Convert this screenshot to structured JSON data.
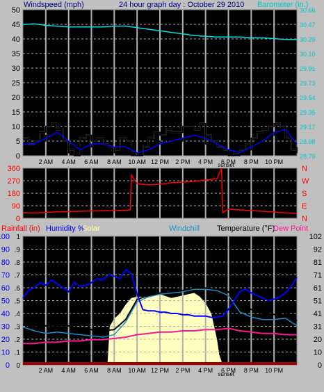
{
  "header": {
    "left_label": "Windspeed (mph)",
    "title": "24 hour graph day : October 29 2010",
    "right_label": "Barometer (in.)"
  },
  "bottom_header": {
    "rainfall": "Rainfall (in)",
    "humidity": "Humidity %",
    "solar": "Solar",
    "windchill": "Windchill",
    "temperature": "Temperature (°F)",
    "dewpoint": "Dew Point"
  },
  "colors": {
    "background": "#c0c0c0",
    "plot": "#000000",
    "barometer": "#00e0e0",
    "wind_direction": "#ff0000",
    "humidity": "#0000ff",
    "solar": "#ffffc0",
    "windchill": "#1890c8",
    "temperature": "#000000",
    "dewpoint": "#ff1493",
    "rain": "#ff0000"
  },
  "time_ticks": [
    "2 AM",
    "4 AM",
    "6 AM",
    "8 AM",
    "10 AM",
    "12 PM",
    "2 PM",
    "4 PM",
    "6 PM",
    "8 PM",
    "10 PM"
  ],
  "sunset_label": "sunset",
  "chart_data": [
    {
      "type": "line",
      "title": "Windspeed / Barometer",
      "x_unit": "hour of day",
      "xlim": [
        0,
        24
      ],
      "left_axis": {
        "label": "Windspeed (mph)",
        "ylim": [
          0,
          50
        ],
        "ticks": [
          "0",
          "5",
          "10",
          "15",
          "20",
          "25",
          "30",
          "35",
          "40",
          "45",
          "50"
        ]
      },
      "right_axis": {
        "label": "Barometer (in.)",
        "ylim": [
          28.79,
          30.66
        ],
        "ticks": [
          "28.79",
          "28.98",
          "29.17",
          "29.35",
          "29.54",
          "29.73",
          "29.91",
          "30.10",
          "30.29",
          "30.47",
          "30.66"
        ]
      },
      "series": [
        {
          "name": "Barometer (in.)",
          "axis": "right",
          "x": [
            0,
            1,
            2,
            3,
            4,
            5,
            6,
            7,
            8,
            9,
            10,
            11,
            12,
            13,
            14,
            15,
            16,
            17,
            18,
            19,
            20,
            21,
            22,
            23,
            24
          ],
          "values": [
            30.47,
            30.48,
            30.46,
            30.45,
            30.44,
            30.44,
            30.44,
            30.44,
            30.45,
            30.45,
            30.43,
            30.41,
            30.39,
            30.37,
            30.35,
            30.33,
            30.32,
            30.31,
            30.31,
            30.31,
            30.3,
            30.3,
            30.29,
            30.28,
            30.28
          ]
        },
        {
          "name": "Wind gust",
          "axis": "left",
          "x": [
            0,
            0.5,
            1,
            1.5,
            2,
            2.5,
            3,
            3.5,
            4,
            4.5,
            5,
            5.5,
            6,
            6.5,
            7,
            7.5,
            8,
            8.5,
            9,
            9.5,
            10,
            10.5,
            11,
            11.5,
            12,
            12.5,
            13,
            13.5,
            14,
            14.5,
            15,
            15.5,
            16,
            16.5,
            17,
            17.5,
            18,
            18.5,
            19,
            19.5,
            20,
            20.5,
            21,
            21.5,
            22,
            22.5,
            23,
            23.5,
            24
          ],
          "values": [
            6,
            4,
            5,
            8,
            10,
            11,
            9,
            5,
            2,
            0,
            6,
            7,
            5,
            6,
            4,
            3,
            2,
            6,
            5,
            1,
            0,
            3,
            6,
            8,
            7,
            9,
            8,
            8,
            10,
            10,
            9,
            11,
            7,
            5,
            3,
            2,
            0,
            1,
            2,
            4,
            6,
            8,
            9,
            10,
            11,
            10,
            6,
            2,
            3
          ]
        },
        {
          "name": "Wind speed",
          "axis": "left",
          "x": [
            0,
            0.5,
            1,
            1.5,
            2,
            2.5,
            3,
            3.5,
            4,
            4.5,
            5,
            5.5,
            6,
            6.5,
            7,
            7.5,
            8,
            8.5,
            9,
            9.5,
            10,
            10.5,
            11,
            11.5,
            12,
            12.5,
            13,
            13.5,
            14,
            14.5,
            15,
            15.5,
            16,
            16.5,
            17,
            17.5,
            18,
            18.5,
            19,
            19.5,
            20,
            20.5,
            21,
            21.5,
            22,
            22.5,
            23,
            23.5,
            24
          ],
          "values": [
            3,
            2,
            3,
            5,
            7,
            8,
            6,
            3,
            1,
            0,
            3,
            4,
            3,
            4,
            2,
            2,
            1,
            3,
            3,
            0,
            0,
            1,
            3,
            5,
            4,
            6,
            5,
            5,
            6,
            7,
            6,
            7,
            4,
            3,
            2,
            1,
            0,
            0,
            1,
            2,
            4,
            5,
            6,
            7,
            8,
            7,
            4,
            1,
            2
          ]
        },
        {
          "name": "Average wind",
          "axis": "left",
          "x": [
            0,
            1,
            2,
            3,
            4,
            5,
            6,
            7,
            8,
            9,
            10,
            11,
            12,
            13,
            14,
            15,
            16,
            17,
            18,
            19,
            20,
            21,
            22,
            23,
            24
          ],
          "values": [
            4,
            4,
            6,
            8,
            5,
            2,
            4,
            4,
            3,
            3,
            1,
            2,
            4,
            5,
            6,
            7,
            6,
            4,
            2,
            1,
            3,
            5,
            8,
            9,
            4
          ]
        }
      ]
    },
    {
      "type": "line",
      "title": "Wind direction",
      "x_unit": "hour of day",
      "xlim": [
        0,
        24
      ],
      "left_axis": {
        "ylim": [
          0,
          360
        ],
        "ticks": [
          "0",
          "90",
          "180",
          "270",
          "360"
        ]
      },
      "right_axis": {
        "ticks": [
          "N",
          "E",
          "S",
          "W",
          "N"
        ]
      },
      "series": [
        {
          "name": "Wind direction",
          "x": [
            0,
            1,
            2,
            3,
            4,
            5,
            6,
            7,
            8,
            9,
            9.4,
            9.5,
            10,
            11,
            12,
            13,
            14,
            15,
            16,
            17,
            17.4,
            17.5,
            18,
            19,
            20,
            21,
            22,
            23,
            24
          ],
          "values": [
            40,
            38,
            42,
            46,
            48,
            50,
            52,
            54,
            56,
            58,
            60,
            310,
            250,
            240,
            245,
            255,
            260,
            265,
            275,
            285,
            360,
            40,
            65,
            60,
            55,
            50,
            45,
            38,
            35
          ]
        }
      ]
    },
    {
      "type": "line",
      "title": "Humidity / Temperature",
      "x_unit": "hour of day",
      "xlim": [
        0,
        24
      ],
      "left_axis": {
        "label": "Humidity %",
        "ylim": [
          0,
          100
        ],
        "ticks": [
          "0",
          "10",
          "20",
          "30",
          "40",
          "50",
          "60",
          "70",
          "80",
          "90",
          "100"
        ]
      },
      "left_axis_rain": {
        "label": "Rainfall (in)",
        "ticks": [
          "0",
          ".1",
          ".2",
          ".3",
          ".4",
          ".5",
          ".6",
          ".7",
          ".8",
          ".9",
          "1"
        ]
      },
      "right_axis": {
        "label": "Temperature (°F)",
        "ylim": [
          0,
          102
        ],
        "ticks": [
          "0",
          "10",
          "20",
          "31",
          "41",
          "51",
          "61",
          "71",
          "81",
          "92",
          "102"
        ]
      },
      "series": [
        {
          "name": "Humidity",
          "x": [
            0,
            0.5,
            1,
            1.5,
            2,
            2.5,
            3,
            3.5,
            4,
            4.5,
            5,
            5.5,
            6,
            6.5,
            7,
            7.5,
            8,
            8.5,
            9,
            9.5,
            10,
            10.5,
            11,
            11.5,
            12,
            12.5,
            13,
            13.5,
            14,
            14.5,
            15,
            15.5,
            16,
            16.5,
            17,
            17.5,
            18,
            18.5,
            19,
            19.5,
            20,
            20.5,
            21,
            21.5,
            22,
            22.5,
            23,
            23.5,
            24
          ],
          "values": [
            52,
            58,
            60,
            64,
            62,
            66,
            63,
            60,
            57,
            64,
            61,
            62,
            64,
            67,
            66,
            70,
            69,
            67,
            74,
            71,
            55,
            43,
            42,
            42,
            41,
            41,
            40,
            40,
            39,
            39,
            38,
            38,
            38,
            37,
            37,
            38,
            43,
            50,
            57,
            59,
            56,
            54,
            52,
            50,
            51,
            53,
            56,
            61,
            68
          ]
        },
        {
          "name": "Temperature",
          "x": [
            0,
            1,
            2,
            3,
            4,
            5,
            6,
            7,
            8,
            9,
            10,
            11,
            12,
            13,
            14,
            15,
            16,
            17,
            18,
            19,
            20,
            21,
            22,
            23,
            24
          ],
          "values": [
            32,
            30,
            31,
            31,
            31,
            29,
            28,
            27,
            28,
            36,
            52,
            55,
            57,
            58,
            59,
            61,
            61,
            60,
            58,
            48,
            44,
            41,
            40,
            42,
            35
          ]
        },
        {
          "name": "Windchill",
          "x": [
            0,
            1,
            2,
            3,
            4,
            5,
            6,
            7,
            8,
            9,
            10,
            11,
            12,
            13,
            14,
            15,
            16,
            17,
            18,
            19,
            20,
            21,
            22,
            23,
            24
          ],
          "values": [
            30,
            27,
            25,
            26,
            25,
            24,
            23,
            22,
            24,
            34,
            50,
            54,
            56,
            57,
            58,
            60,
            60,
            59,
            55,
            42,
            38,
            36,
            36,
            37,
            31
          ]
        },
        {
          "name": "Dew Point",
          "x": [
            0,
            1,
            2,
            3,
            4,
            5,
            6,
            7,
            8,
            9,
            10,
            11,
            12,
            13,
            14,
            15,
            16,
            17,
            18,
            19,
            20,
            21,
            22,
            23,
            24
          ],
          "values": [
            17,
            17,
            18,
            18,
            19,
            19,
            20,
            20,
            21,
            22,
            24,
            25,
            26,
            26,
            27,
            27,
            28,
            28,
            29,
            27,
            26,
            25,
            25,
            24,
            24
          ]
        },
        {
          "name": "Solar",
          "x": [
            0,
            6,
            7,
            7.4,
            7.6,
            8,
            8.5,
            9,
            9.5,
            10,
            11,
            12,
            13,
            14,
            15,
            15.5,
            16,
            16.5,
            17,
            17.2,
            17.5,
            24
          ],
          "values": [
            0,
            0,
            0,
            0,
            30,
            36,
            40,
            47,
            52,
            53,
            53,
            55,
            52,
            54,
            56,
            53,
            48,
            40,
            20,
            8,
            0,
            0
          ]
        },
        {
          "name": "Rainfall (in)",
          "x": [
            0,
            24
          ],
          "values": [
            0,
            0
          ]
        }
      ]
    }
  ]
}
